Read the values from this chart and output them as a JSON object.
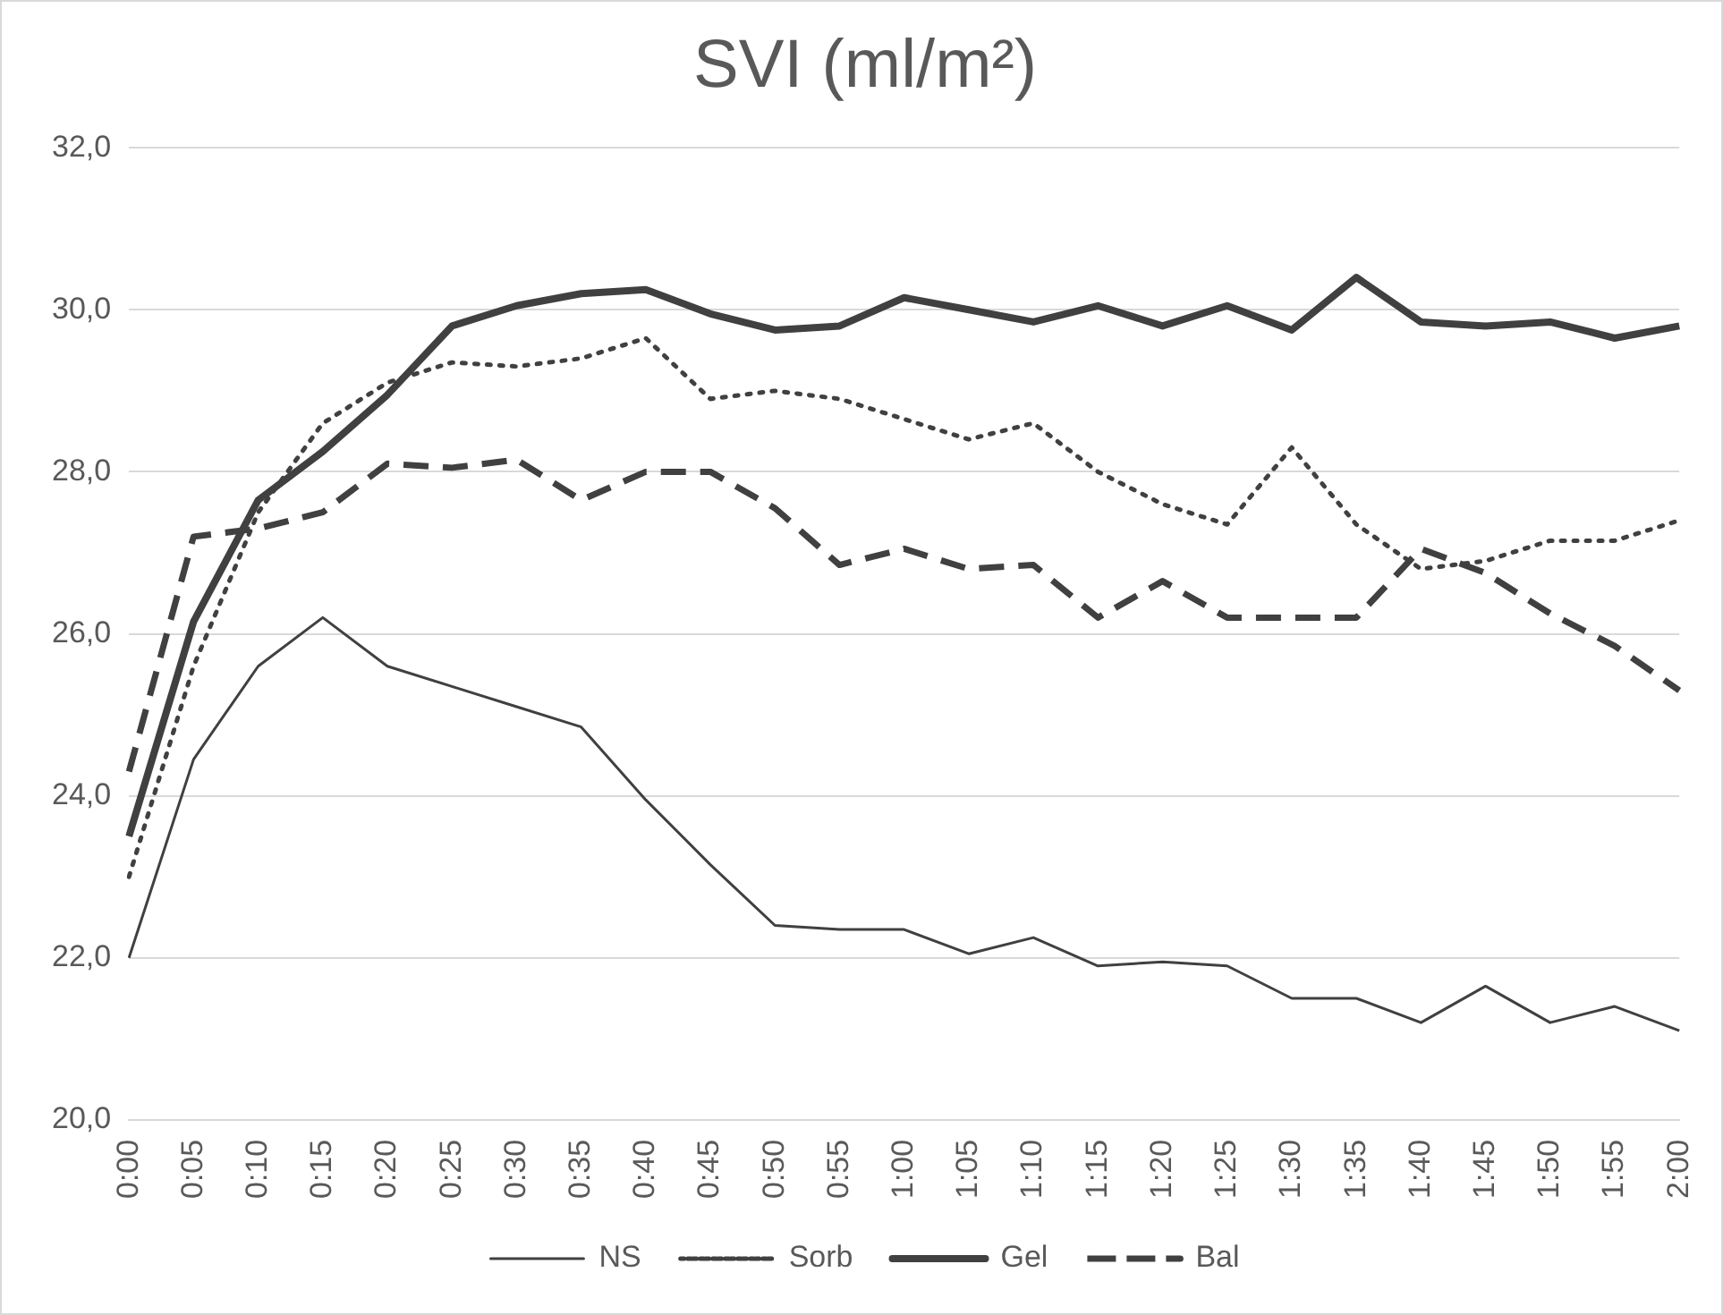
{
  "chart_data": {
    "type": "line",
    "title": "SVI (ml/m²)",
    "categories": [
      "0:00",
      "0:05",
      "0:10",
      "0:15",
      "0:20",
      "0:25",
      "0:30",
      "0:35",
      "0:40",
      "0:45",
      "0:50",
      "0:55",
      "1:00",
      "1:05",
      "1:10",
      "1:15",
      "1:20",
      "1:25",
      "1:30",
      "1:35",
      "1:40",
      "1:45",
      "1:50",
      "1:55",
      "2:00"
    ],
    "series": [
      {
        "name": "NS",
        "color": "#404040",
        "line_style": "solid",
        "values": [
          22.0,
          24.45,
          25.6,
          26.2,
          25.6,
          25.35,
          25.1,
          24.85,
          23.95,
          23.15,
          22.4,
          22.35,
          22.35,
          22.05,
          22.25,
          21.9,
          21.95,
          21.9,
          21.5,
          21.5,
          21.2,
          21.65,
          21.2,
          21.4,
          21.1
        ]
      },
      {
        "name": "Sorb",
        "color": "#404040",
        "line_style": "dotted",
        "values": [
          23.0,
          25.6,
          27.5,
          28.6,
          29.1,
          29.35,
          29.3,
          29.4,
          29.65,
          28.9,
          29.0,
          28.9,
          28.65,
          28.4,
          28.6,
          28.0,
          27.6,
          27.35,
          28.3,
          27.35,
          26.8,
          26.9,
          27.15,
          27.15,
          27.4
        ]
      },
      {
        "name": "Gel",
        "color": "#404040",
        "line_style": "solid",
        "values": [
          23.5,
          26.15,
          27.65,
          28.25,
          28.95,
          29.8,
          30.05,
          30.2,
          30.25,
          29.95,
          29.75,
          29.8,
          30.15,
          30.0,
          29.85,
          30.05,
          29.8,
          30.05,
          29.75,
          30.4,
          29.85,
          29.8,
          29.85,
          29.65,
          29.8
        ]
      },
      {
        "name": "Bal",
        "color": "#404040",
        "line_style": "dashed",
        "values": [
          24.3,
          27.2,
          27.3,
          27.5,
          28.1,
          28.05,
          28.15,
          27.65,
          28.0,
          28.0,
          27.55,
          26.85,
          27.05,
          26.8,
          26.85,
          26.2,
          26.65,
          26.2,
          26.2,
          26.2,
          27.05,
          26.75,
          26.25,
          25.85,
          25.3
        ]
      }
    ],
    "ylim": [
      20,
      32
    ],
    "yticks": [
      {
        "value": 20,
        "label": "20,0"
      },
      {
        "value": 22,
        "label": "22,0"
      },
      {
        "value": 24,
        "label": "24,0"
      },
      {
        "value": 26,
        "label": "26,0"
      },
      {
        "value": 28,
        "label": "28,0"
      },
      {
        "value": 30,
        "label": "30,0"
      },
      {
        "value": 32,
        "label": "32,0"
      }
    ],
    "grid": "y",
    "legend": "bottom",
    "marker": "none"
  }
}
